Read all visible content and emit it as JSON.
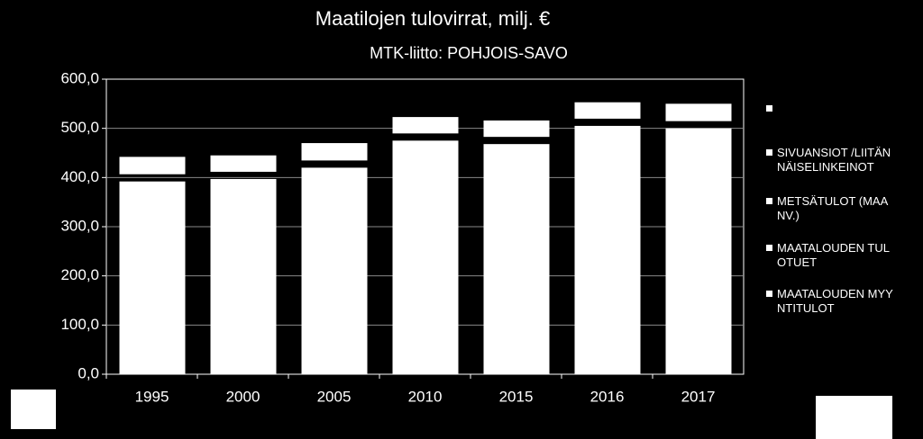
{
  "chart_data": {
    "type": "bar",
    "stacked": true,
    "title": "Maatilojen tulovirrat,  milj. €",
    "subtitle": "MTK-liitto: POHJOIS-SAVO",
    "categories": [
      "1995",
      "2000",
      "2005",
      "2010",
      "2015",
      "2016",
      "2017"
    ],
    "series": [
      {
        "name": "MAATALOUDEN MYYNTITULOT",
        "color": "#ffffff",
        "values": [
          392,
          397,
          420,
          475,
          468,
          505,
          500
        ]
      },
      {
        "name": "MAATALOUDEN TULOTUET",
        "color": "#ffffff",
        "values": [
          50,
          48,
          50,
          48,
          48,
          48,
          50
        ]
      },
      {
        "name": "METSÄTULOT (MAANV.)",
        "color": "#ffffff",
        "values": [
          0,
          0,
          0,
          0,
          0,
          0,
          0
        ]
      },
      {
        "name": "SIVUANSIOT /LIITÄNNÄISELINKEINOT",
        "color": "#ffffff",
        "values": [
          0,
          0,
          0,
          0,
          0,
          0,
          0
        ]
      }
    ],
    "ylim": [
      0,
      600
    ],
    "yticks": [
      {
        "value": 0,
        "label": "0,0"
      },
      {
        "value": 100,
        "label": "100,0"
      },
      {
        "value": 200,
        "label": "200,0"
      },
      {
        "value": 300,
        "label": "300,0"
      },
      {
        "value": 400,
        "label": "400,0"
      },
      {
        "value": 500,
        "label": "500,0"
      },
      {
        "value": 600,
        "label": "600,0"
      }
    ],
    "grid": true,
    "legend": "right"
  }
}
